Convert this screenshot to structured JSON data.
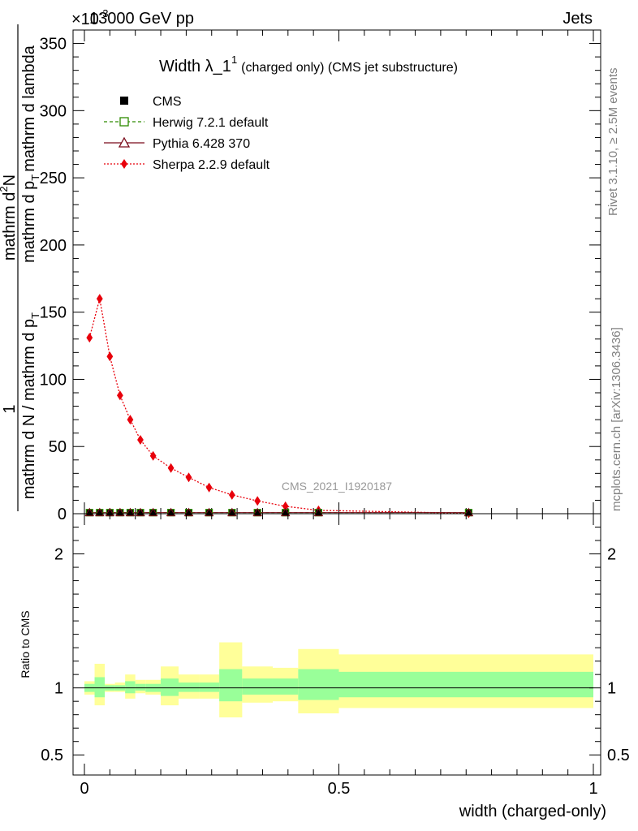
{
  "header": {
    "energy": "13000 GeV pp",
    "process": "Jets",
    "exponent_label": "×10",
    "exponent_power": "-3"
  },
  "side_labels": {
    "rivet": "Rivet 3.1.10, ≥ 2.5M events",
    "mcplots": "mcplots.cern.ch [arXiv:1306.3436]"
  },
  "title": {
    "main": "Width λ_1",
    "superscript": "1",
    "sub": "(charged only) (CMS jet substructure)"
  },
  "watermark": "CMS_2021_I1920187",
  "ylabel_main": {
    "line1_left": "1",
    "line1_right_top": "mathrm d",
    "line1_right_sup": "2",
    "line1_right_bottom": "N",
    "denominator": "mathrm d N / mathrm d p",
    "denominator_sub": "T",
    "numerator_right": "mathrm d p",
    "numerator_right_sub": "T",
    "numerator_right_tail": "mathrm d lambda"
  },
  "ylabel_ratio": "Ratio to CMS",
  "xlabel": "width (charged-only)",
  "legend": [
    {
      "label": "CMS",
      "color": "#000000",
      "marker": "square-filled",
      "line": "none"
    },
    {
      "label": "Herwig 7.2.1 default",
      "color": "#2e8b00",
      "marker": "square-open",
      "line": "dashed"
    },
    {
      "label": "Pythia 6.428 370",
      "color": "#7a0a1a",
      "marker": "triangle-open",
      "line": "solid"
    },
    {
      "label": "Sherpa 2.2.9 default",
      "color": "#e8000b",
      "marker": "diamond-filled",
      "line": "dotted"
    }
  ],
  "chart_data": {
    "type": "line",
    "xlim": [
      0,
      1
    ],
    "ylim": [
      0,
      360
    ],
    "ratio_ylim": [
      0.35,
      2.3
    ],
    "x_ticks": [
      0,
      0.5,
      1
    ],
    "x_tick_labels": [
      "0",
      "0.5",
      "1"
    ],
    "y_ticks": [
      0,
      50,
      100,
      150,
      200,
      250,
      300,
      350
    ],
    "y_tick_labels": [
      "0",
      "50",
      "100",
      "150",
      "200",
      "250",
      "300",
      "350"
    ],
    "ratio_ticks": [
      0.5,
      1,
      2
    ],
    "ratio_tick_labels": [
      "0.5",
      "1",
      "2"
    ],
    "x": [
      0.01,
      0.03,
      0.05,
      0.07,
      0.09,
      0.11,
      0.135,
      0.17,
      0.205,
      0.245,
      0.29,
      0.34,
      0.395,
      0.46,
      0.755
    ],
    "series": [
      {
        "name": "Sherpa 2.2.9 default",
        "values": [
          131,
          160,
          117,
          88,
          70,
          55,
          43,
          34,
          27,
          19.5,
          14,
          9.5,
          5.5,
          2.5,
          0.3
        ]
      },
      {
        "name": "CMS",
        "values": [
          0.8,
          0.8,
          0.8,
          0.8,
          0.8,
          0.8,
          0.8,
          0.8,
          0.8,
          0.8,
          0.8,
          0.8,
          0.8,
          0.8,
          0.8
        ]
      },
      {
        "name": "Herwig 7.2.1 default",
        "values": [
          0.8,
          0.8,
          0.8,
          0.8,
          0.8,
          0.8,
          0.8,
          0.8,
          0.8,
          0.8,
          0.8,
          0.8,
          0.8,
          0.8,
          0.8
        ]
      },
      {
        "name": "Pythia 6.428 370",
        "values": [
          0.8,
          0.8,
          0.8,
          0.8,
          0.8,
          0.8,
          0.8,
          0.8,
          0.8,
          0.8,
          0.8,
          0.8,
          0.8,
          0.8,
          0.8
        ]
      }
    ],
    "ratio_bands": [
      {
        "x0": 0.0,
        "x1": 0.02,
        "inner": [
          0.97,
          1.03
        ],
        "outer": [
          0.95,
          1.05
        ]
      },
      {
        "x0": 0.02,
        "x1": 0.04,
        "inner": [
          0.93,
          1.08
        ],
        "outer": [
          0.87,
          1.18
        ]
      },
      {
        "x0": 0.04,
        "x1": 0.06,
        "inner": [
          0.98,
          1.02
        ],
        "outer": [
          0.97,
          1.03
        ]
      },
      {
        "x0": 0.06,
        "x1": 0.08,
        "inner": [
          0.98,
          1.02
        ],
        "outer": [
          0.97,
          1.04
        ]
      },
      {
        "x0": 0.08,
        "x1": 0.1,
        "inner": [
          0.96,
          1.05
        ],
        "outer": [
          0.92,
          1.1
        ]
      },
      {
        "x0": 0.1,
        "x1": 0.12,
        "inner": [
          0.98,
          1.03
        ],
        "outer": [
          0.96,
          1.06
        ]
      },
      {
        "x0": 0.12,
        "x1": 0.15,
        "inner": [
          0.97,
          1.03
        ],
        "outer": [
          0.95,
          1.06
        ]
      },
      {
        "x0": 0.15,
        "x1": 0.185,
        "inner": [
          0.94,
          1.07
        ],
        "outer": [
          0.87,
          1.16
        ]
      },
      {
        "x0": 0.185,
        "x1": 0.225,
        "inner": [
          0.97,
          1.04
        ],
        "outer": [
          0.92,
          1.1
        ]
      },
      {
        "x0": 0.225,
        "x1": 0.265,
        "inner": [
          0.97,
          1.04
        ],
        "outer": [
          0.92,
          1.1
        ]
      },
      {
        "x0": 0.265,
        "x1": 0.31,
        "inner": [
          0.9,
          1.14
        ],
        "outer": [
          0.78,
          1.34
        ]
      },
      {
        "x0": 0.31,
        "x1": 0.37,
        "inner": [
          0.95,
          1.07
        ],
        "outer": [
          0.89,
          1.16
        ]
      },
      {
        "x0": 0.37,
        "x1": 0.42,
        "inner": [
          0.95,
          1.07
        ],
        "outer": [
          0.9,
          1.15
        ]
      },
      {
        "x0": 0.42,
        "x1": 0.5,
        "inner": [
          0.91,
          1.14
        ],
        "outer": [
          0.81,
          1.29
        ]
      },
      {
        "x0": 0.5,
        "x1": 1.0,
        "inner": [
          0.93,
          1.12
        ],
        "outer": [
          0.85,
          1.25
        ]
      }
    ],
    "colors": {
      "band_inner": "#99ff99",
      "band_outer": "#ffff99",
      "sherpa": "#e8000b",
      "herwig": "#2e8b00",
      "pythia": "#7a0a1a",
      "cms": "#000000",
      "watermark": "#999999",
      "side_text": "#808080"
    }
  }
}
